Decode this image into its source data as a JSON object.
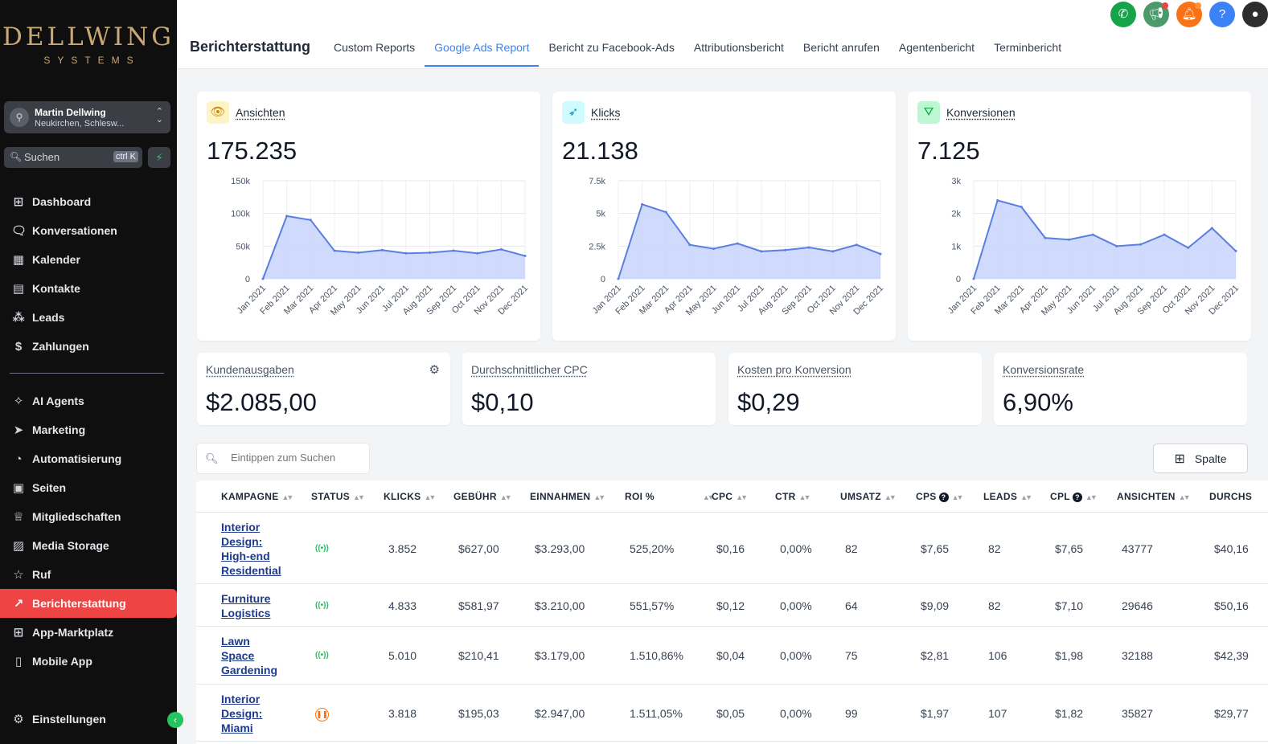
{
  "sidebar": {
    "logo_line1": "DELLWING",
    "logo_line2": "SYSTEMS",
    "account_name": "Martin Dellwing",
    "account_location": "Neukirchen, Schlesw...",
    "search_placeholder": "Suchen",
    "search_shortcut": "ctrl K",
    "nav_top": [
      {
        "label": "Dashboard",
        "icon": "grid-icon"
      },
      {
        "label": "Konversationen",
        "icon": "chat-icon"
      },
      {
        "label": "Kalender",
        "icon": "calendar-icon"
      },
      {
        "label": "Kontakte",
        "icon": "contacts-icon"
      },
      {
        "label": "Leads",
        "icon": "leads-icon"
      },
      {
        "label": "Zahlungen",
        "icon": "payments-icon"
      }
    ],
    "nav_bottom": [
      {
        "label": "AI Agents",
        "icon": "sparkle-icon"
      },
      {
        "label": "Marketing",
        "icon": "send-icon"
      },
      {
        "label": "Automatisierung",
        "icon": "automation-icon"
      },
      {
        "label": "Seiten",
        "icon": "pages-icon"
      },
      {
        "label": "Mitgliedschaften",
        "icon": "membership-icon"
      },
      {
        "label": "Media Storage",
        "icon": "image-icon"
      },
      {
        "label": "Ruf",
        "icon": "star-icon"
      },
      {
        "label": "Berichterstattung",
        "icon": "trend-icon",
        "active": true
      },
      {
        "label": "App-Marktplatz",
        "icon": "apps-icon"
      },
      {
        "label": "Mobile App",
        "icon": "phone-icon"
      }
    ],
    "settings_label": "Einstellungen"
  },
  "header": {
    "title": "Berichterstattung",
    "tabs": [
      {
        "label": "Custom Reports"
      },
      {
        "label": "Google Ads Report",
        "active": true
      },
      {
        "label": "Bericht zu Facebook-Ads"
      },
      {
        "label": "Attributionsbericht"
      },
      {
        "label": "Bericht anrufen"
      },
      {
        "label": "Agentenbericht"
      },
      {
        "label": "Terminbericht"
      }
    ],
    "icon_colors": {
      "phone": "#16a34a",
      "megaphone": "#4b9a6b",
      "bell": "#f97316",
      "help": "#3b82f6"
    }
  },
  "metrics": [
    {
      "label": "Ansichten",
      "value": "175.235",
      "icon": "eye-icon",
      "icon_bg": "#fef3c7",
      "icon_color": "#ca8a04"
    },
    {
      "label": "Klicks",
      "value": "21.138",
      "icon": "cursor-click-icon",
      "icon_bg": "#cffafe",
      "icon_color": "#0891b2"
    },
    {
      "label": "Konversionen",
      "value": "7.125",
      "icon": "funnel-icon",
      "icon_bg": "#bbf7d0",
      "icon_color": "#16a34a"
    }
  ],
  "chart_data": [
    {
      "type": "area",
      "x": [
        "Jan 2021",
        "Feb 2021",
        "Mar 2021",
        "Apr 2021",
        "May 2021",
        "Jun 2021",
        "Jul 2021",
        "Aug 2021",
        "Sep 2021",
        "Oct 2021",
        "Nov 2021",
        "Dec 2021"
      ],
      "values": [
        0,
        96000,
        90000,
        43000,
        40000,
        44000,
        39000,
        40000,
        43000,
        39000,
        45000,
        35000
      ],
      "yticks": [
        "0",
        "50k",
        "100k",
        "150k"
      ],
      "ylim": [
        0,
        150000
      ],
      "grid": true,
      "color": "#5b7fe0",
      "fill": "#c7d4fb"
    },
    {
      "type": "area",
      "x": [
        "Jan 2021",
        "Feb 2021",
        "Mar 2021",
        "Apr 2021",
        "May 2021",
        "Jun 2021",
        "Jul 2021",
        "Aug 2021",
        "Sep 2021",
        "Oct 2021",
        "Nov 2021",
        "Dec 2021"
      ],
      "values": [
        0,
        5700,
        5100,
        2600,
        2300,
        2700,
        2100,
        2200,
        2400,
        2100,
        2600,
        1900
      ],
      "yticks": [
        "0",
        "2.5k",
        "5k",
        "7.5k"
      ],
      "ylim": [
        0,
        7500
      ],
      "grid": true,
      "color": "#5b7fe0",
      "fill": "#c7d4fb"
    },
    {
      "type": "area",
      "x": [
        "Jan 2021",
        "Feb 2021",
        "Mar 2021",
        "Apr 2021",
        "May 2021",
        "Jun 2021",
        "Jul 2021",
        "Aug 2021",
        "Sep 2021",
        "Oct 2021",
        "Nov 2021",
        "Dec 2021"
      ],
      "values": [
        0,
        2400,
        2200,
        1250,
        1200,
        1350,
        1000,
        1050,
        1350,
        950,
        1550,
        850
      ],
      "yticks": [
        "0",
        "1k",
        "2k",
        "3k"
      ],
      "ylim": [
        0,
        3000
      ],
      "grid": true,
      "color": "#5b7fe0",
      "fill": "#c7d4fb"
    }
  ],
  "stats": [
    {
      "label": "Kundenausgaben",
      "value": "$2.085,00"
    },
    {
      "label": "Durchschnittlicher CPC",
      "value": "$0,10"
    },
    {
      "label": "Kosten pro Konversion",
      "value": "$0,29"
    },
    {
      "label": "Konversionsrate",
      "value": "6,90%"
    }
  ],
  "table": {
    "search_placeholder": "Eintippen zum Suchen",
    "column_button": "Spalte",
    "headers": [
      "KAMPAGNE",
      "STATUS",
      "KLICKS",
      "GEBÜHR",
      "EINNAHMEN",
      "ROI %",
      "CPC",
      "CTR",
      "UMSATZ",
      "CPS",
      "LEADS",
      "CPL",
      "ANSICHTEN",
      "DURCHS"
    ],
    "rows": [
      {
        "name_lines": [
          "Interior",
          "Design:",
          "High-end",
          "Residential"
        ],
        "status": "active",
        "klicks": "3.852",
        "gebuehr": "$627,00",
        "einnahmen": "$3.293,00",
        "roi": "525,20%",
        "cpc": "$0,16",
        "ctr": "0,00%",
        "umsatz": "82",
        "cps": "$7,65",
        "leads": "82",
        "cpl": "$7,65",
        "ansichten": "43777",
        "durchs": "$40,16"
      },
      {
        "name_lines": [
          "Furniture",
          "Logistics"
        ],
        "status": "active",
        "klicks": "4.833",
        "gebuehr": "$581,97",
        "einnahmen": "$3.210,00",
        "roi": "551,57%",
        "cpc": "$0,12",
        "ctr": "0,00%",
        "umsatz": "64",
        "cps": "$9,09",
        "leads": "82",
        "cpl": "$7,10",
        "ansichten": "29646",
        "durchs": "$50,16"
      },
      {
        "name_lines": [
          "Lawn",
          "Space",
          "Gardening"
        ],
        "status": "active",
        "klicks": "5.010",
        "gebuehr": "$210,41",
        "einnahmen": "$3.179,00",
        "roi": "1.510,86%",
        "cpc": "$0,04",
        "ctr": "0,00%",
        "umsatz": "75",
        "cps": "$2,81",
        "leads": "106",
        "cpl": "$1,98",
        "ansichten": "32188",
        "durchs": "$42,39"
      },
      {
        "name_lines": [
          "Interior",
          "Design:",
          "Miami"
        ],
        "status": "paused",
        "klicks": "3.818",
        "gebuehr": "$195,03",
        "einnahmen": "$2.947,00",
        "roi": "1.511,05%",
        "cpc": "$0,05",
        "ctr": "0,00%",
        "umsatz": "99",
        "cps": "$1,97",
        "leads": "107",
        "cpl": "$1,82",
        "ansichten": "35827",
        "durchs": "$29,77"
      }
    ]
  }
}
